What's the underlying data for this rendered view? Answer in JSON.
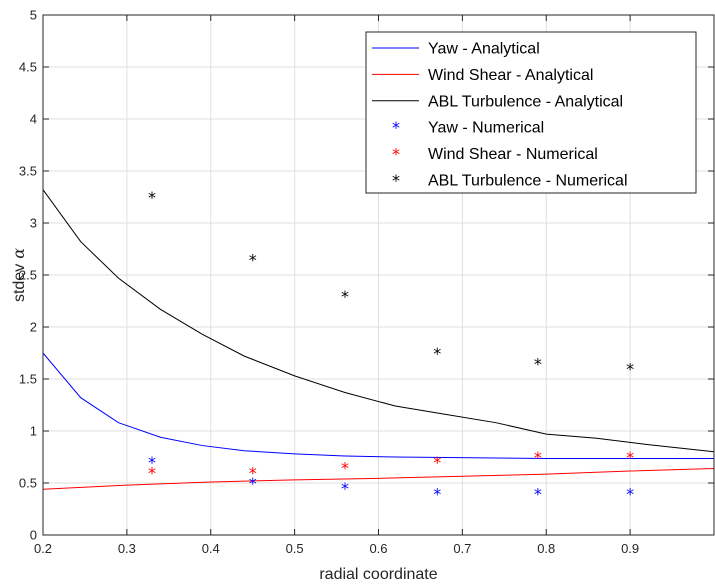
{
  "chart_data": {
    "type": "line",
    "xlabel": "radial coordinate",
    "ylabel_text": "stdev",
    "ylabel_symbol": "α",
    "xlim": [
      0.2,
      1.0
    ],
    "ylim": [
      0,
      5
    ],
    "xticks": [
      "0.2",
      "0.3",
      "0.4",
      "0.5",
      "0.6",
      "0.7",
      "0.8",
      "0.9"
    ],
    "yticks": [
      "0",
      "0.5",
      "1",
      "1.5",
      "2",
      "2.5",
      "3",
      "3.5",
      "4",
      "4.5",
      "5"
    ],
    "grid": true,
    "legend_position": "top-right",
    "series": [
      {
        "name": "Yaw - Analytical",
        "kind": "line",
        "color": "#0000ff",
        "x": [
          0.2,
          0.245,
          0.29,
          0.34,
          0.39,
          0.44,
          0.5,
          0.56,
          0.62,
          0.68,
          0.74,
          0.8,
          0.86,
          0.92,
          1.0
        ],
        "y": [
          1.75,
          1.32,
          1.08,
          0.94,
          0.86,
          0.81,
          0.78,
          0.76,
          0.75,
          0.745,
          0.74,
          0.735,
          0.735,
          0.735,
          0.735
        ]
      },
      {
        "name": "Wind Shear - Analytical",
        "kind": "line",
        "color": "#ff0000",
        "x": [
          0.2,
          0.3,
          0.4,
          0.5,
          0.6,
          0.7,
          0.8,
          0.9,
          1.0
        ],
        "y": [
          0.44,
          0.48,
          0.51,
          0.53,
          0.545,
          0.565,
          0.585,
          0.615,
          0.64
        ]
      },
      {
        "name": "ABL Turbulence - Analytical",
        "kind": "line",
        "color": "#000000",
        "x": [
          0.2,
          0.245,
          0.29,
          0.34,
          0.39,
          0.44,
          0.5,
          0.56,
          0.62,
          0.68,
          0.74,
          0.8,
          0.86,
          0.92,
          1.0
        ],
        "y": [
          3.32,
          2.82,
          2.47,
          2.17,
          1.93,
          1.72,
          1.53,
          1.37,
          1.24,
          1.16,
          1.08,
          0.97,
          0.93,
          0.87,
          0.8
        ]
      },
      {
        "name": "Yaw - Numerical",
        "kind": "marker",
        "color": "#0000ff",
        "x": [
          0.33,
          0.45,
          0.56,
          0.67,
          0.79,
          0.9
        ],
        "y": [
          0.7,
          0.5,
          0.45,
          0.4,
          0.4,
          0.4
        ]
      },
      {
        "name": "Wind Shear - Numerical",
        "kind": "marker",
        "color": "#ff0000",
        "x": [
          0.33,
          0.45,
          0.56,
          0.67,
          0.79,
          0.9
        ],
        "y": [
          0.6,
          0.6,
          0.65,
          0.7,
          0.75,
          0.75
        ]
      },
      {
        "name": "ABL Turbulence - Numerical",
        "kind": "marker",
        "color": "#000000",
        "x": [
          0.33,
          0.45,
          0.56,
          0.67,
          0.79,
          0.9
        ],
        "y": [
          3.25,
          2.65,
          2.3,
          1.75,
          1.65,
          1.6
        ]
      }
    ]
  }
}
